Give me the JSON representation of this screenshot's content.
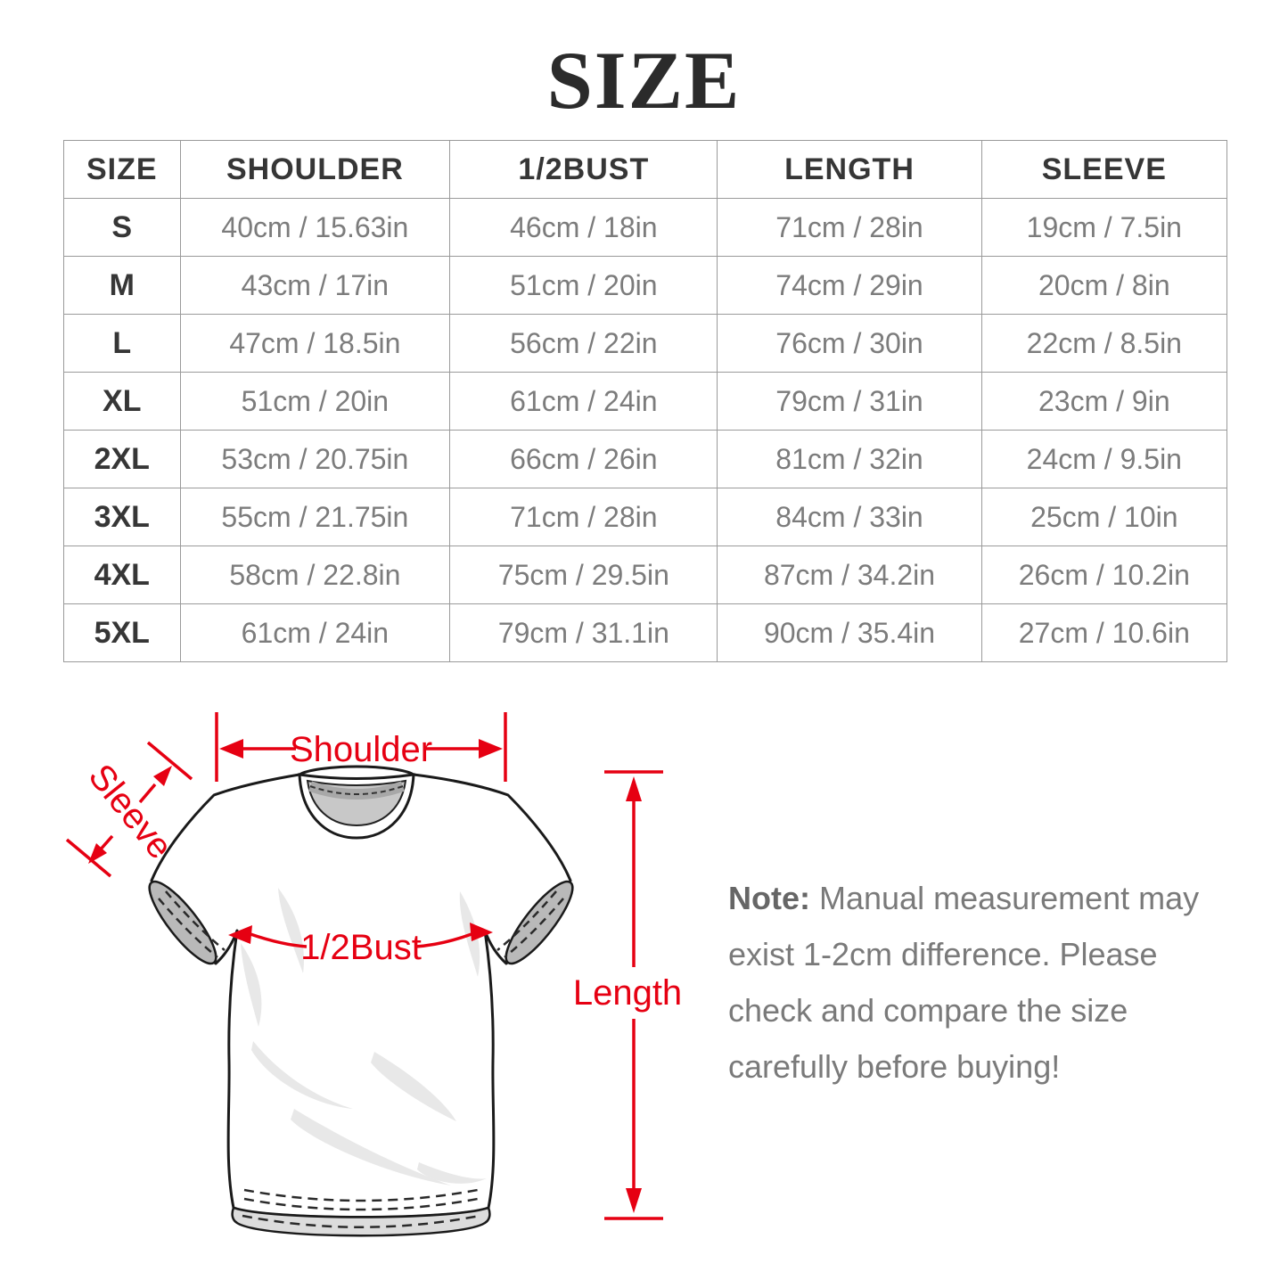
{
  "title": "SIZE",
  "size_table": {
    "headers": [
      "SIZE",
      "SHOULDER",
      "1/2BUST",
      "LENGTH",
      "SLEEVE"
    ],
    "rows": [
      {
        "size": "S",
        "shoulder": "40cm / 15.63in",
        "half_bust": "46cm / 18in",
        "length": "71cm / 28in",
        "sleeve": "19cm / 7.5in"
      },
      {
        "size": "M",
        "shoulder": "43cm / 17in",
        "half_bust": "51cm / 20in",
        "length": "74cm / 29in",
        "sleeve": "20cm / 8in"
      },
      {
        "size": "L",
        "shoulder": "47cm / 18.5in",
        "half_bust": "56cm / 22in",
        "length": "76cm / 30in",
        "sleeve": "22cm / 8.5in"
      },
      {
        "size": "XL",
        "shoulder": "51cm / 20in",
        "half_bust": "61cm / 24in",
        "length": "79cm / 31in",
        "sleeve": "23cm / 9in"
      },
      {
        "size": "2XL",
        "shoulder": "53cm / 20.75in",
        "half_bust": "66cm / 26in",
        "length": "81cm / 32in",
        "sleeve": "24cm / 9.5in"
      },
      {
        "size": "3XL",
        "shoulder": "55cm / 21.75in",
        "half_bust": "71cm / 28in",
        "length": "84cm / 33in",
        "sleeve": "25cm / 10in"
      },
      {
        "size": "4XL",
        "shoulder": "58cm / 22.8in",
        "half_bust": "75cm / 29.5in",
        "length": "87cm / 34.2in",
        "sleeve": "26cm / 10.2in"
      },
      {
        "size": "5XL",
        "shoulder": "61cm / 24in",
        "half_bust": "79cm / 31.1in",
        "length": "90cm / 35.4in",
        "sleeve": "27cm / 10.6in"
      }
    ]
  },
  "diagram": {
    "labels": {
      "shoulder": "Shoulder",
      "sleeve": "Sleeve",
      "half_bust": "1/2Bust",
      "length": "Length"
    },
    "annotation_color": "#e60012"
  },
  "note": {
    "prefix": "Note:",
    "lines": [
      "Manual measurement may",
      "exist 1-2cm difference. Please",
      "check and compare the size",
      "carefully before buying!"
    ]
  }
}
